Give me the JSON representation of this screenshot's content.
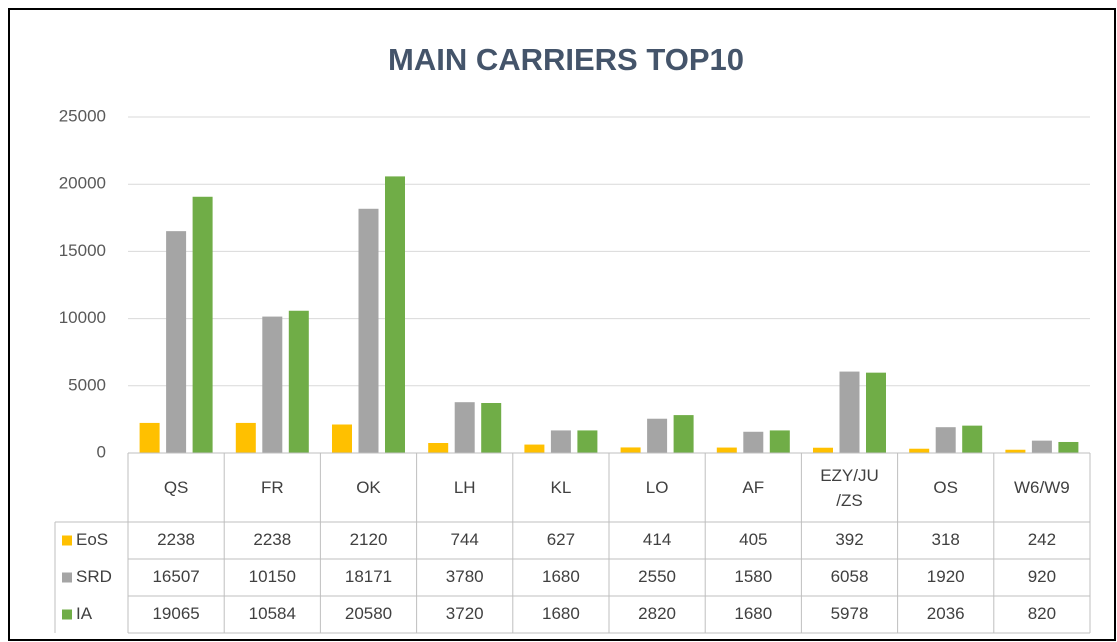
{
  "chart_data": {
    "type": "bar",
    "title": "MAIN CARRIERS TOP10",
    "categories": [
      "QS",
      "FR",
      "OK",
      "LH",
      "KL",
      "LO",
      "AF",
      "EZY/JU/ZS",
      "OS",
      "W6/W9"
    ],
    "series": [
      {
        "name": "EoS",
        "color": "#ffc000",
        "values": [
          2238,
          2238,
          2120,
          744,
          627,
          414,
          405,
          392,
          318,
          242
        ]
      },
      {
        "name": "SRD",
        "color": "#a5a5a5",
        "values": [
          16507,
          10150,
          18171,
          3780,
          1680,
          2550,
          1580,
          6058,
          1920,
          920
        ]
      },
      {
        "name": "IA",
        "color": "#70ad47",
        "values": [
          19065,
          10584,
          20580,
          3720,
          1680,
          2820,
          1680,
          5978,
          2036,
          820
        ]
      }
    ],
    "ylim": [
      0,
      25000
    ],
    "yticks": [
      0,
      5000,
      10000,
      15000,
      20000,
      25000
    ],
    "grid": true,
    "data_table": true
  }
}
